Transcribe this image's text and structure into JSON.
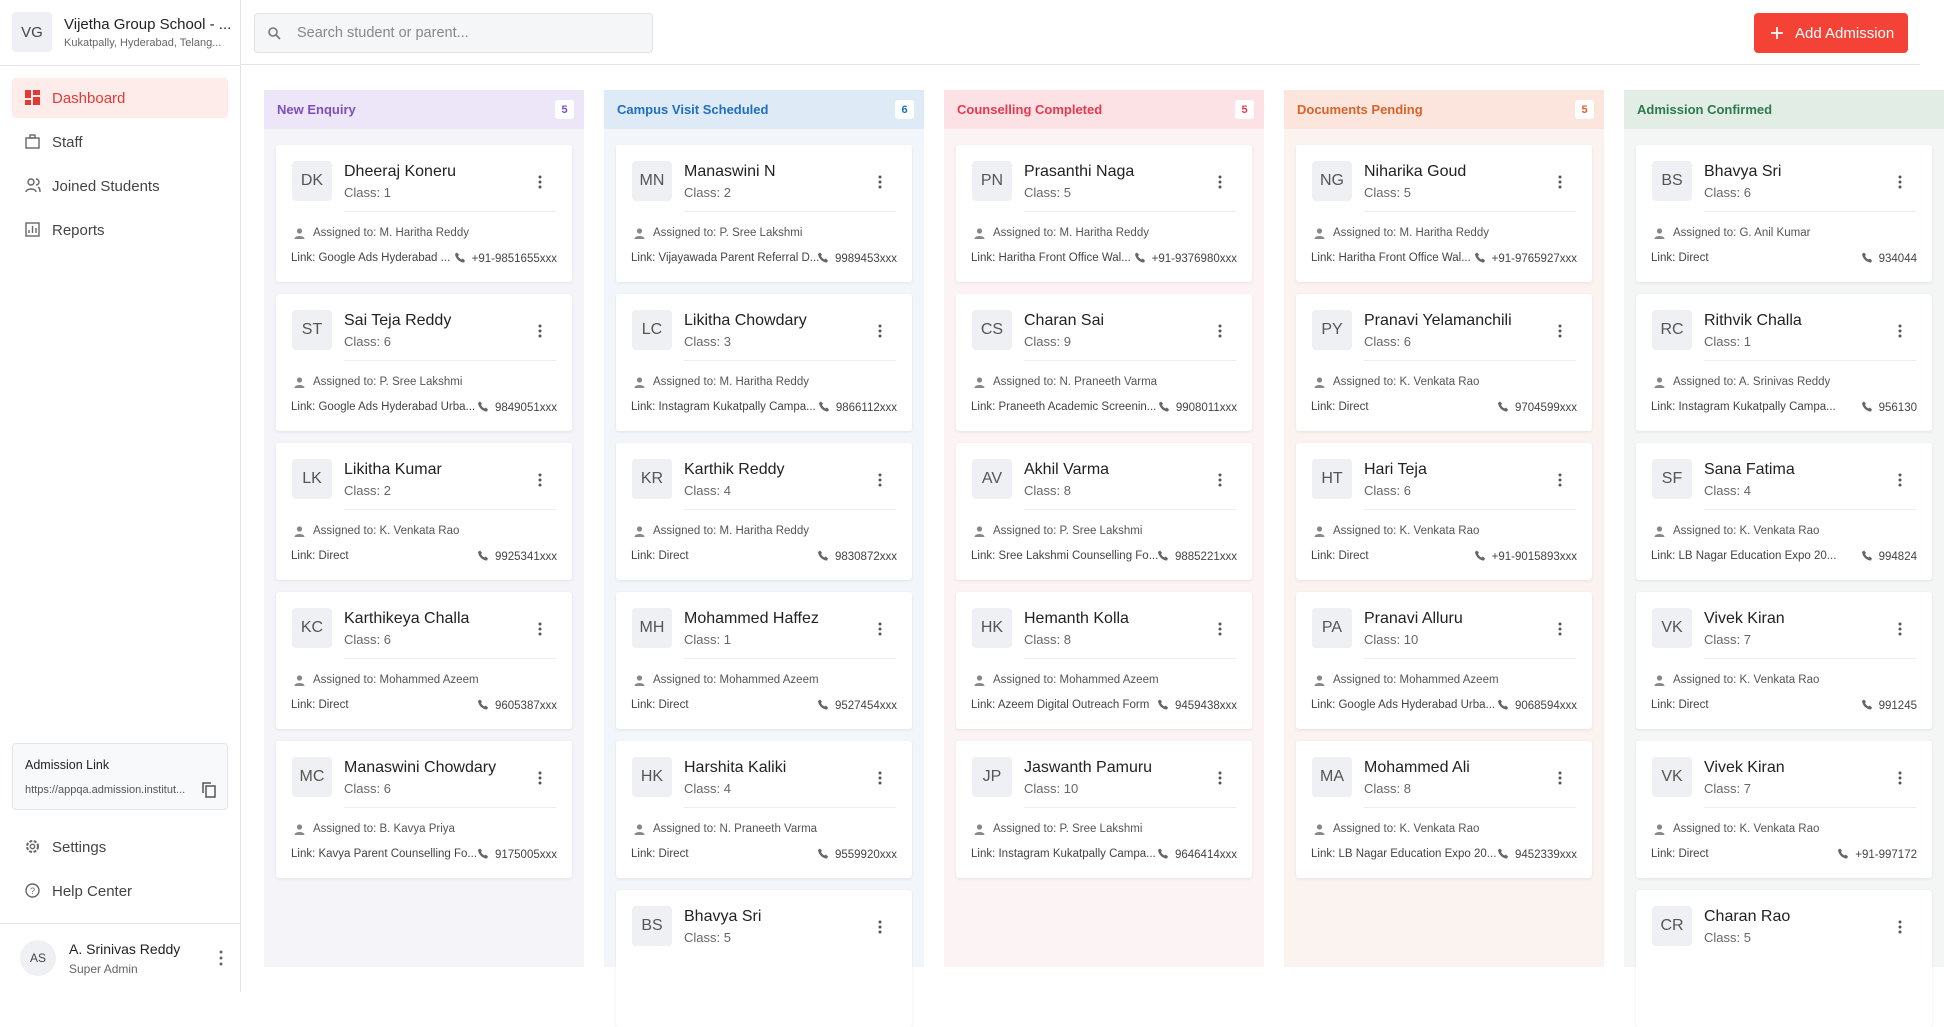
{
  "sidebar": {
    "logo": "VG",
    "school_name": "Vijetha Group School - ...",
    "school_location": "Kukatpally, Hyderabad, Telang...",
    "nav": [
      "Dashboard",
      "Staff",
      "Joined Students",
      "Reports"
    ],
    "admission_link": {
      "title": "Admission Link",
      "url": "https://appqa.admission.institut..."
    },
    "footer_nav": [
      "Settings",
      "Help Center"
    ],
    "user": {
      "initials": "AS",
      "name": "A. Srinivas Reddy",
      "role": "Super Admin"
    }
  },
  "header": {
    "search_placeholder": "Search student or parent...",
    "add_button": "Add Admission"
  },
  "board": {
    "columns": [
      {
        "title": "New Enquiry",
        "count": "5",
        "cards": [
          {
            "initials": "DK",
            "name": "Dheeraj Koneru",
            "class": "Class: 1",
            "assigned": "Assigned to: M. Haritha Reddy",
            "link": "Link: Google Ads Hyderabad ...",
            "phone": "+91-9851655xxx"
          },
          {
            "initials": "ST",
            "name": "Sai Teja Reddy",
            "class": "Class: 6",
            "assigned": "Assigned to: P. Sree Lakshmi",
            "link": "Link: Google Ads Hyderabad Urba...",
            "phone": "9849051xxx"
          },
          {
            "initials": "LK",
            "name": "Likitha Kumar",
            "class": "Class: 2",
            "assigned": "Assigned to: K. Venkata Rao",
            "link": "Link: Direct",
            "phone": "9925341xxx"
          },
          {
            "initials": "KC",
            "name": "Karthikeya Challa",
            "class": "Class: 6",
            "assigned": "Assigned to: Mohammed Azeem",
            "link": "Link: Direct",
            "phone": "9605387xxx"
          },
          {
            "initials": "MC",
            "name": "Manaswini Chowdary",
            "class": "Class: 6",
            "assigned": "Assigned to: B. Kavya Priya",
            "link": "Link: Kavya Parent Counselling Fo...",
            "phone": "9175005xxx"
          }
        ]
      },
      {
        "title": "Campus Visit Scheduled",
        "count": "6",
        "cards": [
          {
            "initials": "MN",
            "name": "Manaswini N",
            "class": "Class: 2",
            "assigned": "Assigned to: P. Sree Lakshmi",
            "link": "Link: Vijayawada Parent Referral D...",
            "phone": "9989453xxx"
          },
          {
            "initials": "LC",
            "name": "Likitha Chowdary",
            "class": "Class: 3",
            "assigned": "Assigned to: M. Haritha Reddy",
            "link": "Link: Instagram Kukatpally Campa...",
            "phone": "9866112xxx"
          },
          {
            "initials": "KR",
            "name": "Karthik Reddy",
            "class": "Class: 4",
            "assigned": "Assigned to: M. Haritha Reddy",
            "link": "Link: Direct",
            "phone": "9830872xxx"
          },
          {
            "initials": "MH",
            "name": "Mohammed Haffez",
            "class": "Class: 1",
            "assigned": "Assigned to: Mohammed Azeem",
            "link": "Link: Direct",
            "phone": "9527454xxx"
          },
          {
            "initials": "HK",
            "name": "Harshita Kaliki",
            "class": "Class: 4",
            "assigned": "Assigned to: N. Praneeth Varma",
            "link": "Link: Direct",
            "phone": "9559920xxx"
          },
          {
            "initials": "BS",
            "name": "Bhavya Sri",
            "class": "Class: 5"
          }
        ]
      },
      {
        "title": "Counselling Completed",
        "count": "5",
        "cards": [
          {
            "initials": "PN",
            "name": "Prasanthi Naga",
            "class": "Class: 5",
            "assigned": "Assigned to: M. Haritha Reddy",
            "link": "Link: Haritha Front Office Wal...",
            "phone": "+91-9376980xxx"
          },
          {
            "initials": "CS",
            "name": "Charan Sai",
            "class": "Class: 9",
            "assigned": "Assigned to: N. Praneeth Varma",
            "link": "Link: Praneeth Academic Screenin...",
            "phone": "9908011xxx"
          },
          {
            "initials": "AV",
            "name": "Akhil Varma",
            "class": "Class: 8",
            "assigned": "Assigned to: P. Sree Lakshmi",
            "link": "Link: Sree Lakshmi Counselling Fo...",
            "phone": "9885221xxx"
          },
          {
            "initials": "HK",
            "name": "Hemanth Kolla",
            "class": "Class: 8",
            "assigned": "Assigned to: Mohammed Azeem",
            "link": "Link: Azeem Digital Outreach Form",
            "phone": "9459438xxx"
          },
          {
            "initials": "JP",
            "name": "Jaswanth Pamuru",
            "class": "Class: 10",
            "assigned": "Assigned to: P. Sree Lakshmi",
            "link": "Link: Instagram Kukatpally Campa...",
            "phone": "9646414xxx"
          }
        ]
      },
      {
        "title": "Documents Pending",
        "count": "5",
        "cards": [
          {
            "initials": "NG",
            "name": "Niharika Goud",
            "class": "Class: 5",
            "assigned": "Assigned to: M. Haritha Reddy",
            "link": "Link: Haritha Front Office Wal...",
            "phone": "+91-9765927xxx"
          },
          {
            "initials": "PY",
            "name": "Pranavi Yelamanchili",
            "class": "Class: 6",
            "assigned": "Assigned to: K. Venkata Rao",
            "link": "Link: Direct",
            "phone": "9704599xxx"
          },
          {
            "initials": "HT",
            "name": "Hari Teja",
            "class": "Class: 6",
            "assigned": "Assigned to: K. Venkata Rao",
            "link": "Link: Direct",
            "phone": "+91-9015893xxx"
          },
          {
            "initials": "PA",
            "name": "Pranavi Alluru",
            "class": "Class: 10",
            "assigned": "Assigned to: Mohammed Azeem",
            "link": "Link: Google Ads Hyderabad Urba...",
            "phone": "9068594xxx"
          },
          {
            "initials": "MA",
            "name": "Mohammed Ali",
            "class": "Class: 8",
            "assigned": "Assigned to: K. Venkata Rao",
            "link": "Link: LB Nagar Education Expo 20...",
            "phone": "9452339xxx"
          }
        ]
      },
      {
        "title": "Admission Confirmed",
        "cards": [
          {
            "initials": "BS",
            "name": "Bhavya Sri",
            "class": "Class: 6",
            "assigned": "Assigned to: G. Anil Kumar",
            "link": "Link: Direct",
            "phone": "934044"
          },
          {
            "initials": "RC",
            "name": "Rithvik Challa",
            "class": "Class: 1",
            "assigned": "Assigned to: A. Srinivas Reddy",
            "link": "Link: Instagram Kukatpally Campa...",
            "phone": "956130"
          },
          {
            "initials": "SF",
            "name": "Sana Fatima",
            "class": "Class: 4",
            "assigned": "Assigned to: K. Venkata Rao",
            "link": "Link: LB Nagar Education Expo 20...",
            "phone": "994824"
          },
          {
            "initials": "VK",
            "name": "Vivek Kiran",
            "class": "Class: 7",
            "assigned": "Assigned to: K. Venkata Rao",
            "link": "Link: Direct",
            "phone": "991245"
          },
          {
            "initials": "VK",
            "name": "Vivek Kiran",
            "class": "Class: 7",
            "assigned": "Assigned to: K. Venkata Rao",
            "link": "Link: Direct",
            "phone": "+91-997172"
          },
          {
            "initials": "CR",
            "name": "Charan Rao",
            "class": "Class: 5"
          }
        ]
      }
    ]
  }
}
